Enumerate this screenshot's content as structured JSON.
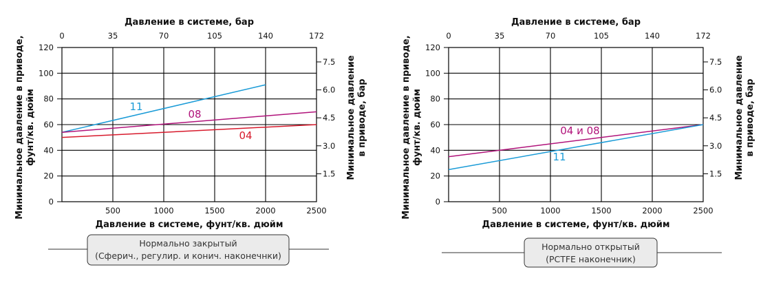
{
  "chart_data": [
    {
      "type": "line",
      "top_title": "Давление в системе, бар",
      "xlabel": "Давление в системе, фунт/кв. дюйм",
      "ylabel_lines": [
        "Минимальное давление в приводе,",
        "фунт/кв. дюйм"
      ],
      "ylabel2_lines": [
        "Минимальное давление",
        "в приводе, бар"
      ],
      "xlim": [
        0,
        2500
      ],
      "ylim": [
        0,
        120
      ],
      "x_ticks": [
        "500",
        "1000",
        "1500",
        "2000",
        "2500"
      ],
      "y_ticks": [
        "0",
        "20",
        "40",
        "60",
        "80",
        "100",
        "120"
      ],
      "top_ticks": [
        "0",
        "35",
        "70",
        "105",
        "140",
        "172"
      ],
      "right_ticks": [
        "1.5",
        "3.0",
        "4.5",
        "6.0",
        "7.5"
      ],
      "series": [
        {
          "name": "11",
          "color": "#1a9bd7",
          "x": [
            0,
            2000
          ],
          "y": [
            54,
            91
          ]
        },
        {
          "name": "08",
          "color": "#b0127a",
          "x": [
            0,
            2500
          ],
          "y": [
            54,
            70
          ]
        },
        {
          "name": "04",
          "color": "#d7192b",
          "x": [
            0,
            2500
          ],
          "y": [
            50,
            60
          ]
        }
      ],
      "caption_lines": [
        "Нормально закрытый",
        "(Сферич., регулир. и конич. наконечнки)"
      ],
      "grid": true
    },
    {
      "type": "line",
      "top_title": "Давление в системе, бар",
      "xlabel": "Давление в системе, фунт/кв. дюйм",
      "ylabel_lines": [
        "Минимальное давление в приводе,",
        "фунт/кв. дюйм"
      ],
      "ylabel2_lines": [
        "Минимальное давление",
        "в приводе, бар"
      ],
      "xlim": [
        0,
        2500
      ],
      "ylim": [
        0,
        120
      ],
      "x_ticks": [
        "500",
        "1000",
        "1500",
        "2000",
        "2500"
      ],
      "y_ticks": [
        "0",
        "20",
        "40",
        "60",
        "80",
        "100",
        "120"
      ],
      "top_ticks": [
        "0",
        "35",
        "70",
        "105",
        "140",
        "172"
      ],
      "right_ticks": [
        "1.5",
        "3.0",
        "4.5",
        "6.0",
        "7.5"
      ],
      "series": [
        {
          "name": "04 и 08",
          "color": "#b0127a",
          "x": [
            0,
            2500
          ],
          "y": [
            35,
            60
          ]
        },
        {
          "name": "11",
          "color": "#1a9bd7",
          "x": [
            0,
            2500
          ],
          "y": [
            25,
            60
          ]
        }
      ],
      "caption_lines": [
        "Нормально открытый",
        "(PCTFE наконечник)"
      ],
      "grid": true
    }
  ]
}
